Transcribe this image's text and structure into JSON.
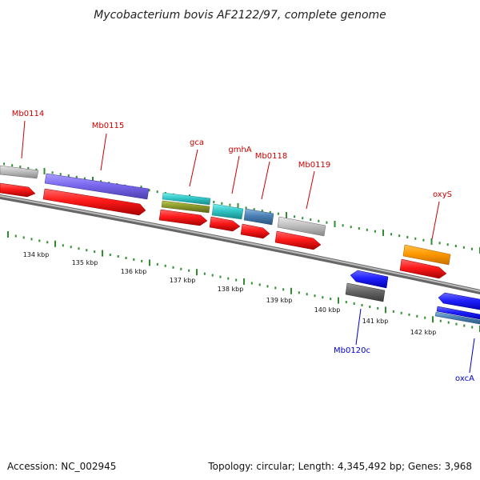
{
  "header": {
    "title": "Mycobacterium bovis AF2122/97, complete genome"
  },
  "footer": {
    "accession": "Accession: NC_002945",
    "topology": "Topology: circular; Length: 4,345,492 bp; Genes: 3,968"
  },
  "map": {
    "scale_labels": [
      "134 kbp",
      "135 kbp",
      "136 kbp",
      "137 kbp",
      "138 kbp",
      "139 kbp",
      "140 kbp",
      "141 kbp",
      "142 kbp"
    ],
    "forward_gene_labels": [
      "Mb0114",
      "Mb0115",
      "gca",
      "gmhA",
      "Mb0118",
      "Mb0119",
      "oxyS"
    ],
    "reverse_gene_labels": [
      "Mb0120c",
      "oxcA"
    ],
    "colors": {
      "backbone": "#8f8f8f",
      "tick": "#2f8f2f",
      "forward_label": "#cc0000",
      "reverse_label": "#0000cc",
      "red_feature": "#ff1a1a",
      "purple_feature": "#7b68ee",
      "cyan_feature": "#32c6c6",
      "steelblue_feature": "#4a7fb5",
      "gray_feature": "#c0c0c0",
      "olive_feature": "#8c9a2a",
      "orange_feature": "#ff9900",
      "blue_feature": "#1f1fff"
    }
  }
}
